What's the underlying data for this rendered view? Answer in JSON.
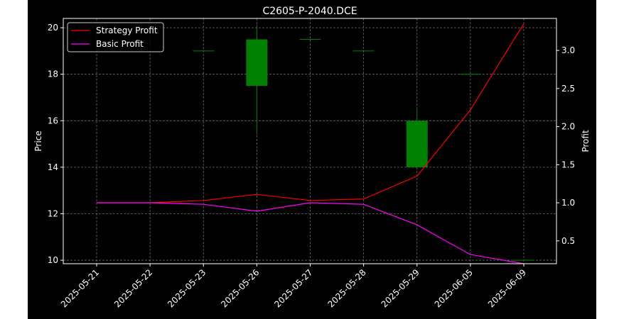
{
  "chart_data": {
    "type": "candlestick-line",
    "title": "C2605-P-2040.DCE",
    "categories": [
      "2025-05-21",
      "2025-05-22",
      "2025-05-23",
      "2025-05-26",
      "2025-05-27",
      "2025-05-28",
      "2025-05-29",
      "2025-06-05",
      "2025-06-09"
    ],
    "left_axis": {
      "label": "Price",
      "range": [
        9.85,
        20.4
      ],
      "ticks": [
        10,
        12,
        14,
        16,
        18,
        20
      ],
      "tick_labels": [
        "10",
        "12",
        "14",
        "16",
        "18",
        "20"
      ]
    },
    "right_axis": {
      "label": "Profit",
      "range": [
        0.2,
        3.42
      ],
      "ticks": [
        0.5,
        1.0,
        1.5,
        2.0,
        2.5,
        3.0
      ],
      "tick_labels": [
        "0.5",
        "1.0",
        "1.5",
        "2.0",
        "2.5",
        "3.0"
      ]
    },
    "candles": [
      {
        "date": "2025-05-23",
        "open": 19.0,
        "high": 19.0,
        "low": 19.0,
        "close": 19.0
      },
      {
        "date": "2025-05-26",
        "open": 17.5,
        "high": 20.0,
        "low": 15.5,
        "close": 19.5
      },
      {
        "date": "2025-05-27",
        "open": 19.5,
        "high": 19.5,
        "low": 19.5,
        "close": 19.5
      },
      {
        "date": "2025-05-28",
        "open": 19.0,
        "high": 19.0,
        "low": 19.0,
        "close": 19.0
      },
      {
        "date": "2025-05-29",
        "open": 14.0,
        "high": 16.5,
        "low": 14.0,
        "close": 16.0
      },
      {
        "date": "2025-06-05",
        "open": 18.0,
        "high": 18.0,
        "low": 18.0,
        "close": 18.0
      },
      {
        "date": "2025-06-09",
        "open": 10.0,
        "high": 10.0,
        "low": 10.0,
        "close": 10.0
      }
    ],
    "series": [
      {
        "name": "Strategy Profit",
        "color": "#ff0000",
        "values": [
          1.0,
          1.0,
          1.03,
          1.11,
          1.03,
          1.05,
          1.35,
          2.22,
          3.35
        ]
      },
      {
        "name": "Basic Profit",
        "color": "#ff00ff",
        "values": [
          1.0,
          1.0,
          0.98,
          0.89,
          1.0,
          0.98,
          0.71,
          0.32,
          0.2
        ]
      }
    ],
    "legend_placement": "top-left",
    "grid": true
  }
}
